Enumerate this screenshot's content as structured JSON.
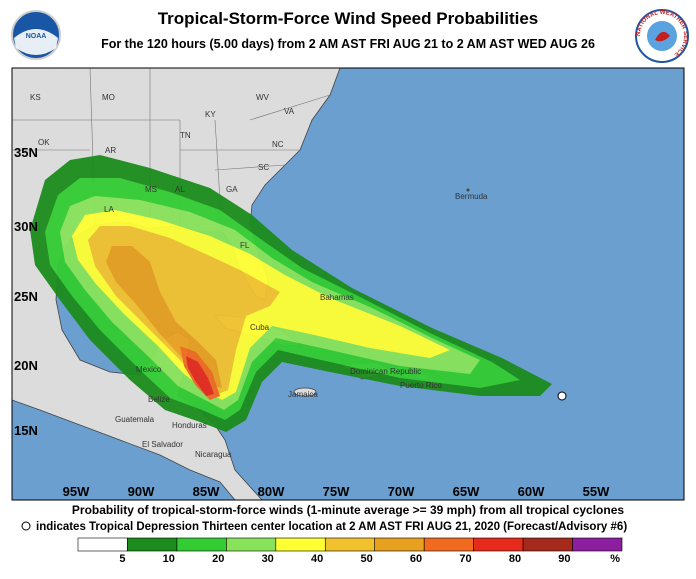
{
  "header": {
    "title": "Tropical-Storm-Force Wind Speed Probabilities",
    "subtitle": "For the 120 hours (5.00 days) from 2 AM AST FRI AUG 21 to 2 AM AST WED AUG 26",
    "logo_left": "NOAA",
    "logo_right": "NATIONAL WEATHER SERVICE"
  },
  "map": {
    "lat_labels": [
      "35N",
      "30N",
      "25N",
      "20N",
      "15N"
    ],
    "lon_labels": [
      "95W",
      "90W",
      "85W",
      "80W",
      "75W",
      "70W",
      "65W",
      "60W",
      "55W"
    ],
    "places": [
      "KS",
      "MO",
      "KY",
      "WV",
      "VA",
      "OK",
      "AR",
      "TN",
      "NC",
      "SC",
      "MS",
      "AL",
      "GA",
      "LA",
      "FL",
      "Bermuda",
      "Bahamas",
      "Cuba",
      "Mexico",
      "Belize",
      "Guatemala",
      "Honduras",
      "Jamaica",
      "El Salvador",
      "Nicaragua",
      "Dominican Republic",
      "Puerto Rico"
    ]
  },
  "footer": {
    "line1": "Probability of tropical-storm-force winds (1-minute average >= 39 mph) from all tropical cyclones",
    "line2": "indicates Tropical Depression Thirteen center location at 2 AM AST FRI AUG 21, 2020 (Forecast/Advisory #6)"
  },
  "legend": {
    "colors": [
      "#ffffff",
      "#1c8c1c",
      "#33cc33",
      "#88e35a",
      "#ffff33",
      "#f2c12e",
      "#e8a020",
      "#f06a1f",
      "#e52b1c",
      "#a52a1c",
      "#8c1fa0"
    ],
    "ticks": [
      5,
      10,
      20,
      30,
      40,
      50,
      60,
      70,
      80,
      90
    ],
    "unit": "%"
  }
}
